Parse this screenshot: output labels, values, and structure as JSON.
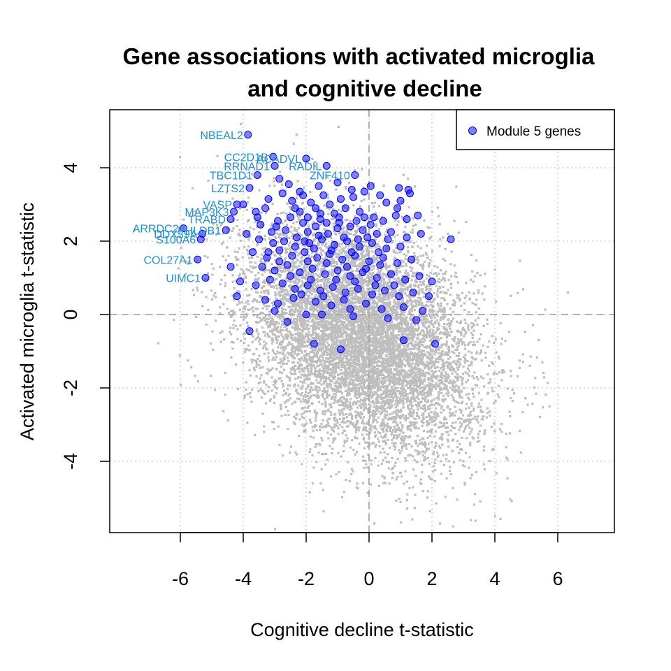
{
  "chart_data": {
    "type": "scatter",
    "title_line1": "Gene associations with activated microglia",
    "title_line2": "and cognitive decline",
    "xlabel": "Cognitive decline t-statistic",
    "ylabel": "Activated microglia t-statistic",
    "xlim": [
      -8.5,
      8
    ],
    "ylim": [
      -5.9,
      5.6
    ],
    "x_ticks": [
      -6,
      -4,
      -2,
      0,
      2,
      4,
      6
    ],
    "y_ticks": [
      -4,
      -2,
      0,
      2,
      4
    ],
    "grid": true,
    "reference_lines": {
      "x": 0,
      "y": 0
    },
    "colors": {
      "background_genes": "#bebebe",
      "module_genes": "#0000ff",
      "gene_labels": "#1f8fd6",
      "grid": "#d3d3d3",
      "reference": "#a9a9a9"
    },
    "legend": {
      "entries": [
        "Module 5 genes"
      ],
      "position": "top-right"
    },
    "background_cloud": {
      "center": [
        -0.2,
        -0.6
      ],
      "sd": [
        1.8,
        1.55
      ],
      "correlation": -0.35,
      "count": 9000
    },
    "labeled_points": [
      {
        "label": "NBEAL2",
        "x": -3.85,
        "y": 4.9
      },
      {
        "label": "CC2D1B",
        "x": -3.05,
        "y": 4.3
      },
      {
        "label": "ACADVL",
        "x": -2.0,
        "y": 4.25
      },
      {
        "label": "RRNAD1",
        "x": -3.0,
        "y": 4.05
      },
      {
        "label": "RADIL",
        "x": -1.35,
        "y": 4.05
      },
      {
        "label": "ZNF410",
        "x": -0.45,
        "y": 3.8
      },
      {
        "label": "TBC1D1",
        "x": -3.55,
        "y": 3.8
      },
      {
        "label": "LZTS2",
        "x": -3.8,
        "y": 3.45
      },
      {
        "label": "VASP",
        "x": -4.2,
        "y": 3.0
      },
      {
        "label": "MAP3K3",
        "x": -4.3,
        "y": 2.8
      },
      {
        "label": "TRABD",
        "x": -4.4,
        "y": 2.6
      },
      {
        "label": "ARRDC2",
        "x": -5.9,
        "y": 2.35
      },
      {
        "label": "PHLDB1",
        "x": -4.55,
        "y": 2.3
      },
      {
        "label": "DDX39A",
        "x": -5.3,
        "y": 2.2
      },
      {
        "label": "S100A6",
        "x": -5.35,
        "y": 2.05
      },
      {
        "label": "COL27A1",
        "x": -5.45,
        "y": 1.5
      },
      {
        "label": "UIMC1",
        "x": -5.2,
        "y": 1.0
      }
    ],
    "module_points": [
      [
        2.6,
        2.05
      ],
      [
        1.25,
        3.4
      ],
      [
        1.3,
        3.3
      ],
      [
        0.95,
        3.45
      ],
      [
        0.05,
        3.5
      ],
      [
        -0.15,
        3.35
      ],
      [
        -0.5,
        3.2
      ],
      [
        0.35,
        3.25
      ],
      [
        1.0,
        3.1
      ],
      [
        0.55,
        3.05
      ],
      [
        0.9,
        2.9
      ],
      [
        1.55,
        2.7
      ],
      [
        1.2,
        2.6
      ],
      [
        0.85,
        2.7
      ],
      [
        0.15,
        2.65
      ],
      [
        -0.3,
        2.8
      ],
      [
        -0.75,
        2.9
      ],
      [
        -1.25,
        3.0
      ],
      [
        -1.85,
        3.05
      ],
      [
        -2.45,
        3.1
      ],
      [
        -3.2,
        3.15
      ],
      [
        -2.85,
        3.7
      ],
      [
        -2.55,
        3.55
      ],
      [
        -2.2,
        3.35
      ],
      [
        -1.6,
        3.5
      ],
      [
        -1.0,
        3.6
      ],
      [
        -0.55,
        3.4
      ],
      [
        -4.0,
        3.0
      ],
      [
        -3.6,
        2.8
      ],
      [
        -3.3,
        2.9
      ],
      [
        -2.9,
        2.55
      ],
      [
        -2.5,
        2.65
      ],
      [
        -2.1,
        2.5
      ],
      [
        -1.7,
        2.4
      ],
      [
        -1.35,
        2.5
      ],
      [
        -1.0,
        2.35
      ],
      [
        -0.6,
        2.4
      ],
      [
        -0.2,
        2.3
      ],
      [
        0.25,
        2.2
      ],
      [
        0.7,
        2.25
      ],
      [
        1.2,
        2.1
      ],
      [
        1.65,
        2.2
      ],
      [
        -3.9,
        2.2
      ],
      [
        -3.5,
        2.05
      ],
      [
        -3.1,
        2.25
      ],
      [
        -2.7,
        2.0
      ],
      [
        -2.3,
        2.1
      ],
      [
        -1.9,
        1.95
      ],
      [
        -1.5,
        2.05
      ],
      [
        -1.1,
        1.9
      ],
      [
        -0.7,
        2.0
      ],
      [
        -0.3,
        1.85
      ],
      [
        0.1,
        1.95
      ],
      [
        0.55,
        1.8
      ],
      [
        1.0,
        1.85
      ],
      [
        -3.7,
        1.7
      ],
      [
        -3.25,
        1.55
      ],
      [
        -2.85,
        1.75
      ],
      [
        -2.45,
        1.6
      ],
      [
        -2.05,
        1.7
      ],
      [
        -1.65,
        1.55
      ],
      [
        -1.25,
        1.65
      ],
      [
        -0.85,
        1.5
      ],
      [
        -0.45,
        1.6
      ],
      [
        0.0,
        1.45
      ],
      [
        0.45,
        1.55
      ],
      [
        0.9,
        1.4
      ],
      [
        1.35,
        1.5
      ],
      [
        -3.4,
        1.3
      ],
      [
        -3.0,
        1.2
      ],
      [
        -2.6,
        1.35
      ],
      [
        -2.2,
        1.15
      ],
      [
        -1.8,
        1.25
      ],
      [
        -1.4,
        1.1
      ],
      [
        -1.0,
        1.2
      ],
      [
        -0.6,
        1.05
      ],
      [
        -0.2,
        1.15
      ],
      [
        0.25,
        1.0
      ],
      [
        0.7,
        1.1
      ],
      [
        1.15,
        0.95
      ],
      [
        1.6,
        1.05
      ],
      [
        2.0,
        0.9
      ],
      [
        -4.4,
        1.3
      ],
      [
        -4.1,
        0.9
      ],
      [
        -3.6,
        0.8
      ],
      [
        -3.15,
        0.95
      ],
      [
        -2.75,
        0.85
      ],
      [
        -2.35,
        0.7
      ],
      [
        -1.95,
        0.8
      ],
      [
        -1.55,
        0.65
      ],
      [
        -1.15,
        0.75
      ],
      [
        -0.75,
        0.6
      ],
      [
        -0.35,
        0.7
      ],
      [
        0.1,
        0.55
      ],
      [
        0.5,
        0.65
      ],
      [
        0.95,
        0.5
      ],
      [
        1.4,
        0.6
      ],
      [
        1.9,
        0.5
      ],
      [
        -4.2,
        0.5
      ],
      [
        -3.3,
        0.4
      ],
      [
        -2.9,
        0.3
      ],
      [
        -2.4,
        0.45
      ],
      [
        -1.7,
        0.35
      ],
      [
        -1.2,
        0.25
      ],
      [
        -0.8,
        0.4
      ],
      [
        -0.1,
        0.3
      ],
      [
        0.4,
        0.15
      ],
      [
        1.1,
        0.2
      ],
      [
        1.7,
        0.1
      ],
      [
        -3.0,
        0.1
      ],
      [
        -2.0,
        0.0
      ],
      [
        -0.5,
        -0.05
      ],
      [
        0.6,
        -0.1
      ],
      [
        1.5,
        -0.15
      ],
      [
        -3.8,
        -0.45
      ],
      [
        -2.6,
        -0.2
      ],
      [
        -1.75,
        -0.8
      ],
      [
        -0.9,
        -0.95
      ],
      [
        1.1,
        -0.7
      ],
      [
        2.1,
        -0.8
      ],
      [
        -1.5,
        0.0
      ],
      [
        -2.2,
        2.8
      ],
      [
        -1.55,
        2.75
      ],
      [
        -0.95,
        2.65
      ],
      [
        -0.4,
        2.55
      ],
      [
        0.05,
        2.45
      ],
      [
        -2.65,
        2.3
      ],
      [
        -1.95,
        2.25
      ],
      [
        -1.3,
        2.2
      ],
      [
        -0.8,
        2.1
      ],
      [
        -0.35,
        2.05
      ],
      [
        -2.35,
        1.85
      ],
      [
        -1.75,
        1.8
      ],
      [
        -1.2,
        1.75
      ],
      [
        -0.55,
        1.7
      ],
      [
        0.3,
        1.7
      ],
      [
        -3.05,
        1.95
      ],
      [
        -2.1,
        3.25
      ],
      [
        -1.45,
        3.25
      ],
      [
        -0.9,
        3.15
      ],
      [
        -1.7,
        2.9
      ],
      [
        -1.1,
        2.75
      ],
      [
        -2.75,
        3.3
      ],
      [
        -2.35,
        2.9
      ],
      [
        -1.95,
        2.65
      ],
      [
        -1.55,
        2.6
      ],
      [
        -1.6,
        2.15
      ],
      [
        -0.95,
        2.5
      ],
      [
        -0.15,
        2.65
      ],
      [
        0.45,
        2.55
      ],
      [
        0.6,
        2.05
      ],
      [
        -0.05,
        2.1
      ],
      [
        -2.95,
        2.4
      ],
      [
        -3.45,
        2.45
      ],
      [
        -3.55,
        2.65
      ],
      [
        -2.05,
        2.0
      ],
      [
        -1.35,
        1.4
      ],
      [
        -0.7,
        1.3
      ],
      [
        -0.1,
        1.25
      ],
      [
        0.35,
        1.35
      ],
      [
        -2.5,
        1.05
      ],
      [
        -1.85,
        0.95
      ],
      [
        -1.05,
        0.95
      ],
      [
        -0.45,
        0.9
      ],
      [
        0.2,
        0.8
      ],
      [
        0.8,
        0.8
      ],
      [
        -2.15,
        0.55
      ],
      [
        -1.45,
        0.5
      ],
      [
        -0.6,
        0.15
      ],
      [
        -1.95,
        1.45
      ],
      [
        -2.85,
        1.45
      ],
      [
        -3.2,
        1.7
      ]
    ]
  }
}
